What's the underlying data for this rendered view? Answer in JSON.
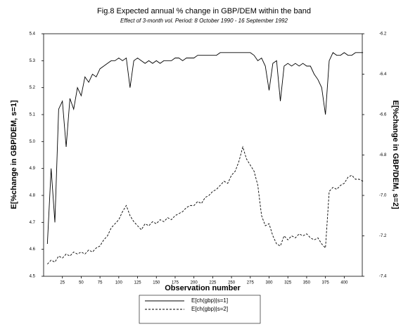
{
  "chart_data": {
    "type": "line",
    "title": "Fig.8 Expected annual % change in GBP/DEM within the band",
    "subtitle": "Effect of 3-month vol. Period: 8 October 1990 - 16 September 1992",
    "x_label": "Observation number",
    "y_label": "E[%change in GBP/DEM, s=1]",
    "y2_label": "E[%change in GBP/DEM, s=2]",
    "x": [
      5,
      10,
      15,
      20,
      25,
      30,
      35,
      40,
      45,
      50,
      55,
      60,
      65,
      70,
      75,
      80,
      85,
      90,
      95,
      100,
      105,
      110,
      115,
      120,
      125,
      130,
      135,
      140,
      145,
      150,
      155,
      160,
      165,
      170,
      175,
      180,
      185,
      190,
      195,
      200,
      205,
      210,
      215,
      220,
      225,
      230,
      235,
      240,
      245,
      250,
      255,
      260,
      265,
      270,
      275,
      280,
      285,
      290,
      295,
      300,
      305,
      310,
      315,
      320,
      325,
      330,
      335,
      340,
      345,
      350,
      355,
      360,
      365,
      370,
      375,
      380,
      385,
      390,
      395,
      400,
      405,
      410,
      415,
      420,
      425
    ],
    "series": [
      {
        "name": "E[ch(gbp)|s=1]",
        "color": "#000000",
        "dash": "solid",
        "values": [
          4.62,
          4.9,
          4.7,
          5.12,
          5.15,
          4.98,
          5.16,
          5.12,
          5.2,
          5.17,
          5.24,
          5.22,
          5.25,
          5.24,
          5.27,
          5.28,
          5.29,
          5.3,
          5.3,
          5.31,
          5.3,
          5.31,
          5.2,
          5.3,
          5.31,
          5.3,
          5.29,
          5.3,
          5.29,
          5.3,
          5.29,
          5.3,
          5.3,
          5.3,
          5.31,
          5.31,
          5.3,
          5.31,
          5.31,
          5.31,
          5.32,
          5.32,
          5.32,
          5.32,
          5.32,
          5.32,
          5.33,
          5.33,
          5.33,
          5.33,
          5.33,
          5.33,
          5.33,
          5.33,
          5.33,
          5.32,
          5.3,
          5.31,
          5.28,
          5.19,
          5.29,
          5.3,
          5.15,
          5.28,
          5.29,
          5.28,
          5.29,
          5.28,
          5.29,
          5.28,
          5.28,
          5.25,
          5.23,
          5.2,
          5.1,
          5.3,
          5.33,
          5.32,
          5.32,
          5.33,
          5.32,
          5.32,
          5.33,
          5.33,
          5.33
        ]
      },
      {
        "name": "E[ch(gbp)|s=2]",
        "color": "#000000",
        "dash": "dashed",
        "axis": "y2",
        "values": [
          -7.34,
          -7.32,
          -7.33,
          -7.3,
          -7.31,
          -7.29,
          -7.3,
          -7.28,
          -7.29,
          -7.28,
          -7.29,
          -7.27,
          -7.28,
          -7.26,
          -7.25,
          -7.22,
          -7.2,
          -7.16,
          -7.14,
          -7.12,
          -7.08,
          -7.05,
          -7.1,
          -7.13,
          -7.15,
          -7.17,
          -7.14,
          -7.15,
          -7.13,
          -7.14,
          -7.12,
          -7.13,
          -7.11,
          -7.12,
          -7.1,
          -7.09,
          -7.08,
          -7.06,
          -7.05,
          -7.05,
          -7.03,
          -7.04,
          -7.01,
          -7.0,
          -6.98,
          -6.97,
          -6.95,
          -6.93,
          -6.94,
          -6.9,
          -6.88,
          -6.83,
          -6.76,
          -6.82,
          -6.85,
          -6.88,
          -6.95,
          -7.1,
          -7.15,
          -7.14,
          -7.2,
          -7.24,
          -7.25,
          -7.2,
          -7.22,
          -7.2,
          -7.21,
          -7.19,
          -7.2,
          -7.19,
          -7.21,
          -7.22,
          -7.21,
          -7.24,
          -7.26,
          -6.98,
          -6.96,
          -6.97,
          -6.95,
          -6.94,
          -6.91,
          -6.9,
          -6.92,
          -6.92,
          -6.93
        ]
      }
    ],
    "xlim": [
      0,
      424
    ],
    "xticks": [
      25,
      50,
      75,
      100,
      125,
      150,
      175,
      200,
      225,
      250,
      275,
      300,
      325,
      350,
      375,
      400
    ],
    "ylim": [
      4.5,
      5.4
    ],
    "yticks": [
      4.5,
      4.6,
      4.7,
      4.8,
      4.9,
      {
        "value": 5,
        "label": "5.0"
      },
      5.1,
      5.2,
      5.3,
      5.4
    ],
    "y2lim": [
      -7.4,
      -6.2
    ],
    "y2ticks": [
      -7.4,
      -7.2,
      {
        "value": -7,
        "label": "-7.0"
      },
      -6.8,
      -6.6,
      -6.4,
      -6.2
    ],
    "grid": false,
    "legend": "bottom"
  }
}
